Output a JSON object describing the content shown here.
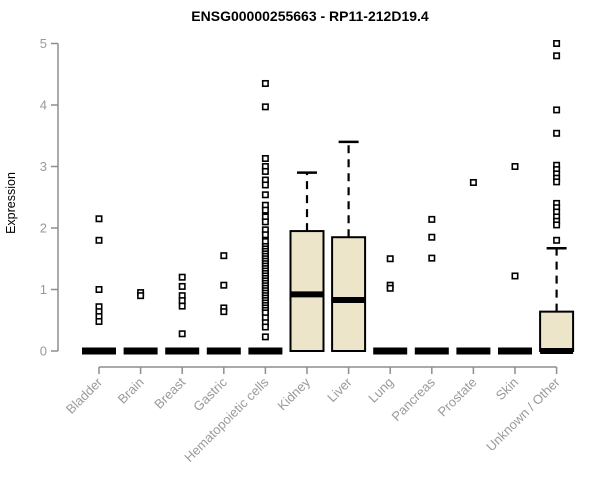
{
  "chart_data": {
    "type": "boxplot",
    "title": "ENSG00000255663 - RP11-212D19.4",
    "ylabel": "Expression",
    "xlabel": "",
    "ylim": [
      0,
      5
    ],
    "yticks": [
      0,
      1,
      2,
      3,
      4,
      5
    ],
    "grid": false,
    "legend": "none",
    "box_fill": "#ede5c9",
    "box_stroke": "#000000",
    "median_color": "#000000",
    "whisker_color": "#000000",
    "outlier_fill": "#ffffff",
    "outlier_stroke": "#000000",
    "axis_color": "#8e8e8e",
    "label_color": "#9a9a9a",
    "categories": [
      "Bladder",
      "Brain",
      "Breast",
      "Gastric",
      "Hematopoietic cells",
      "Kidney",
      "Liver",
      "Lung",
      "Pancreas",
      "Prostate",
      "Skin",
      "Unknown / Other"
    ],
    "series": [
      {
        "label": "Bladder",
        "q1": 0,
        "median": 0,
        "q3": 0,
        "whisker_low": 0,
        "whisker_high": 0,
        "outliers": [
          2.15,
          1.8,
          1.0,
          0.72,
          0.64,
          0.56,
          0.48
        ]
      },
      {
        "label": "Brain",
        "q1": 0,
        "median": 0,
        "q3": 0,
        "whisker_low": 0,
        "whisker_high": 0,
        "outliers": [
          0.95,
          0.9
        ]
      },
      {
        "label": "Breast",
        "q1": 0,
        "median": 0,
        "q3": 0,
        "whisker_low": 0,
        "whisker_high": 0,
        "outliers": [
          1.2,
          1.05,
          0.9,
          0.82,
          0.73,
          0.28
        ]
      },
      {
        "label": "Gastric",
        "q1": 0,
        "median": 0,
        "q3": 0,
        "whisker_low": 0,
        "whisker_high": 0,
        "outliers": [
          1.55,
          1.07,
          0.7,
          0.64
        ]
      },
      {
        "label": "Hematopoietic cells",
        "q1": 0,
        "median": 0,
        "q3": 0,
        "whisker_low": 0,
        "whisker_high": 0,
        "outliers": [
          4.35,
          3.97,
          3.13,
          3.0,
          2.92,
          2.78,
          2.7,
          2.54,
          2.37,
          2.29,
          2.18,
          2.1,
          1.97,
          1.89,
          1.78,
          1.7,
          1.66,
          1.62,
          1.58,
          1.54,
          1.5,
          1.46,
          1.42,
          1.38,
          1.34,
          1.3,
          1.26,
          1.22,
          1.18,
          1.14,
          1.1,
          1.06,
          1.02,
          0.98,
          0.94,
          0.9,
          0.86,
          0.82,
          0.78,
          0.74,
          0.7,
          0.66,
          0.62,
          0.54,
          0.46,
          0.39,
          0.23
        ]
      },
      {
        "label": "Kidney",
        "q1": 0,
        "median": 0.92,
        "q3": 1.95,
        "whisker_low": 0,
        "whisker_high": 2.9,
        "outliers": []
      },
      {
        "label": "Liver",
        "q1": 0,
        "median": 0.83,
        "q3": 1.85,
        "whisker_low": 0,
        "whisker_high": 3.4,
        "outliers": []
      },
      {
        "label": "Lung",
        "q1": 0,
        "median": 0,
        "q3": 0,
        "whisker_low": 0,
        "whisker_high": 0,
        "outliers": [
          1.5,
          1.07,
          1.02
        ]
      },
      {
        "label": "Pancreas",
        "q1": 0,
        "median": 0,
        "q3": 0,
        "whisker_low": 0,
        "whisker_high": 0,
        "outliers": [
          2.14,
          1.85,
          1.51
        ]
      },
      {
        "label": "Prostate",
        "q1": 0,
        "median": 0,
        "q3": 0,
        "whisker_low": 0,
        "whisker_high": 0,
        "outliers": [
          2.74
        ]
      },
      {
        "label": "Skin",
        "q1": 0,
        "median": 0,
        "q3": 0,
        "whisker_low": 0,
        "whisker_high": 0,
        "outliers": [
          3.0,
          1.22
        ]
      },
      {
        "label": "Unknown / Other",
        "q1": 0,
        "median": 0,
        "q3": 0.64,
        "whisker_low": 0,
        "whisker_high": 1.67,
        "outliers": [
          5.0,
          4.8,
          3.92,
          3.54,
          3.02,
          2.95,
          2.88,
          2.81,
          2.75,
          2.4,
          2.33,
          2.26,
          2.18,
          2.11,
          2.05,
          1.8
        ]
      }
    ]
  }
}
